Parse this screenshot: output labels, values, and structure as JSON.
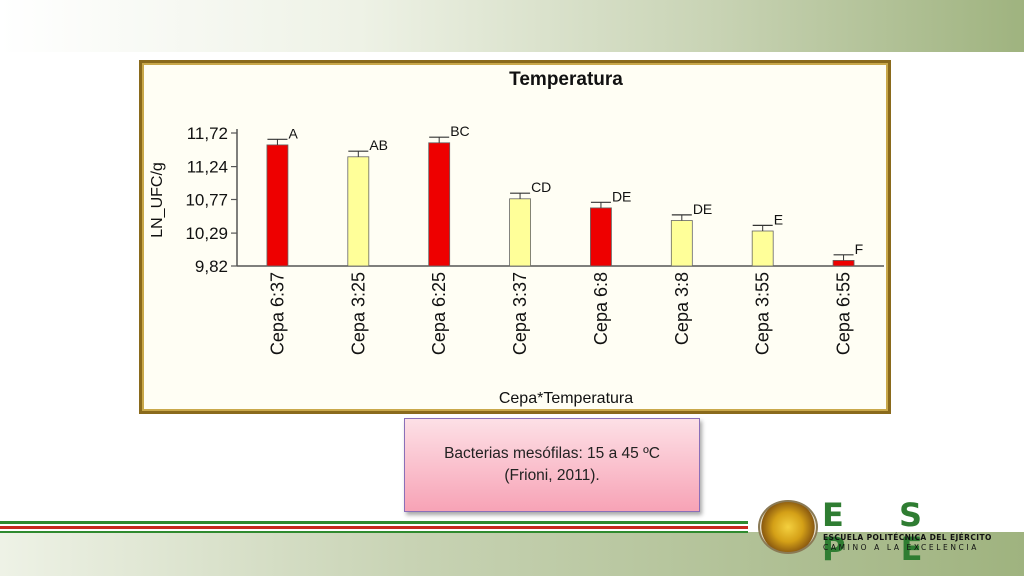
{
  "slide": {
    "note_line1": "Bacterias mesófilas: 15 a 45 ºC",
    "note_line2": "(Frioni, 2011).",
    "logo_letters": "E S P E",
    "logo_line1": "ESCUELA POLITÉCNICA DEL EJÉRCITO",
    "logo_line2": "CAMINO A LA EXCELENCIA",
    "colors": {
      "red_bar": "#ee0000",
      "yellow_bar": "#ffff99",
      "frame": "#8a6a1c",
      "brand_green": "#2f7d32"
    }
  },
  "chart_data": {
    "type": "bar",
    "title": "Temperatura",
    "xlabel": "Cepa*Temperatura",
    "ylabel": "LN_UFC/g",
    "ylim": [
      9.82,
      11.72
    ],
    "yticks": [
      "11,72",
      "11,24",
      "10,77",
      "10,29",
      "9,82"
    ],
    "ytick_values": [
      11.72,
      11.24,
      10.77,
      10.29,
      9.82
    ],
    "categories": [
      "Cepa 6:37",
      "Cepa 3:25",
      "Cepa 6:25",
      "Cepa 3:37",
      "Cepa 6:8",
      "Cepa 3:8",
      "Cepa 3:55",
      "Cepa 6:55"
    ],
    "values": [
      11.55,
      11.38,
      11.58,
      10.78,
      10.65,
      10.47,
      10.32,
      9.9
    ],
    "errors": [
      0.08,
      0.08,
      0.08,
      0.08,
      0.08,
      0.08,
      0.08,
      0.08
    ],
    "bar_colors": [
      "#ee0000",
      "#ffff99",
      "#ee0000",
      "#ffff99",
      "#ee0000",
      "#ffff99",
      "#ffff99",
      "#ee0000"
    ],
    "letters": [
      "A",
      "AB",
      "BC",
      "CD",
      "DE",
      "DE",
      "E",
      "F"
    ],
    "grid": false,
    "legend": "none"
  }
}
